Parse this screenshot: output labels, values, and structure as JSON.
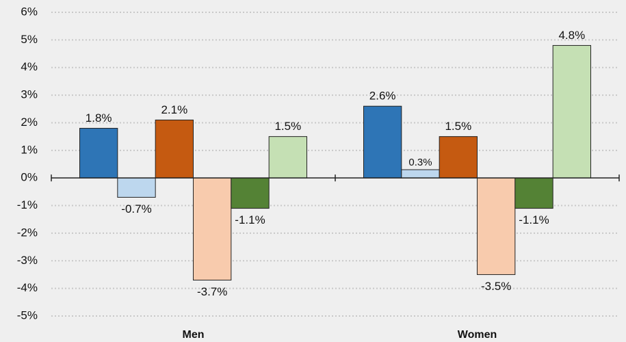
{
  "chart_data": {
    "type": "bar",
    "categories": [
      "Men",
      "Women"
    ],
    "series": [
      {
        "color": "#2e75b6",
        "values": [
          1.8,
          2.6
        ],
        "value_labels": [
          "1.8%",
          "2.6%"
        ]
      },
      {
        "color": "#bdd7ee",
        "values": [
          -0.7,
          0.3
        ],
        "value_labels": [
          "-0.7%",
          "0.3%"
        ]
      },
      {
        "color": "#c55a11",
        "values": [
          2.1,
          1.5
        ],
        "value_labels": [
          "2.1%",
          "1.5%"
        ]
      },
      {
        "color": "#f8cbad",
        "values": [
          -3.7,
          -3.5
        ],
        "value_labels": [
          "-3.7%",
          "-3.5%"
        ]
      },
      {
        "color": "#548235",
        "values": [
          -1.1,
          -1.1
        ],
        "value_labels": [
          "-1.1%",
          "-1.1%"
        ]
      },
      {
        "color": "#c5e0b4",
        "values": [
          1.5,
          4.8
        ],
        "value_labels": [
          "1.5%",
          "4.8%"
        ]
      }
    ],
    "ylim": [
      -5,
      6
    ],
    "yticks": [
      {
        "value": -5,
        "label": "-5%"
      },
      {
        "value": -4,
        "label": "-4%"
      },
      {
        "value": -3,
        "label": "-3%"
      },
      {
        "value": -2,
        "label": "-2%"
      },
      {
        "value": -1,
        "label": "-1%"
      },
      {
        "value": 0,
        "label": "0%"
      },
      {
        "value": 1,
        "label": "1%"
      },
      {
        "value": 2,
        "label": "2%"
      },
      {
        "value": 3,
        "label": "3%"
      },
      {
        "value": 4,
        "label": "4%"
      },
      {
        "value": 5,
        "label": "5%"
      },
      {
        "value": 6,
        "label": "6%"
      }
    ],
    "grid": true
  }
}
